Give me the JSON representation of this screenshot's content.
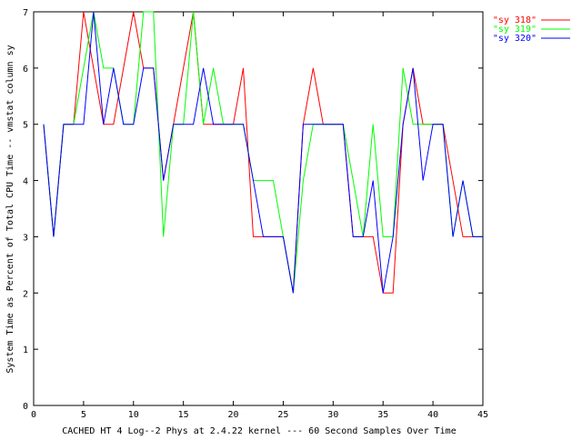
{
  "chart_data": {
    "type": "line",
    "title": "",
    "xlabel": "CACHED HT 4 Log--2 Phys at 2.4.22 kernel --- 60 Second Samples Over Time",
    "ylabel": "System Time as Percent of Total CPU Time -- vmstat column sy",
    "xlim": [
      0,
      45
    ],
    "ylim": [
      0,
      7
    ],
    "xticks": [
      0,
      5,
      10,
      15,
      20,
      25,
      30,
      35,
      40,
      45
    ],
    "yticks": [
      0,
      1,
      2,
      3,
      4,
      5,
      6,
      7
    ],
    "grid": false,
    "legend_position": "top-right",
    "x": [
      1,
      2,
      3,
      4,
      5,
      6,
      7,
      8,
      9,
      10,
      11,
      12,
      13,
      14,
      15,
      16,
      17,
      18,
      19,
      20,
      21,
      22,
      23,
      24,
      25,
      26,
      27,
      28,
      29,
      30,
      31,
      32,
      33,
      34,
      35,
      36,
      37,
      38,
      39,
      40,
      41,
      42,
      43,
      44,
      45
    ],
    "series": [
      {
        "name": "\"sy 318\"",
        "color": "#ff0000",
        "values": [
          5,
          3,
          5,
          5,
          7,
          6,
          5,
          5,
          6,
          7,
          6,
          6,
          4,
          5,
          6,
          7,
          5,
          5,
          5,
          5,
          6,
          3,
          3,
          3,
          3,
          2,
          5,
          6,
          5,
          5,
          5,
          3,
          3,
          3,
          2,
          2,
          5,
          6,
          5,
          5,
          5,
          4,
          3,
          3,
          3
        ]
      },
      {
        "name": "\"sy 319\"",
        "color": "#00ff00",
        "values": [
          5,
          3,
          5,
          5,
          6,
          7,
          6,
          6,
          5,
          5,
          7,
          7,
          3,
          5,
          5,
          7,
          5,
          6,
          5,
          5,
          5,
          4,
          4,
          4,
          3,
          2,
          4,
          5,
          5,
          5,
          5,
          4,
          3,
          5,
          3,
          3,
          6,
          5,
          5,
          5,
          5,
          3,
          4,
          3,
          3
        ]
      },
      {
        "name": "\"sy 320\"",
        "color": "#0000ff",
        "values": [
          5,
          3,
          5,
          5,
          5,
          7,
          5,
          6,
          5,
          5,
          6,
          6,
          4,
          5,
          5,
          5,
          6,
          5,
          5,
          5,
          5,
          4,
          3,
          3,
          3,
          2,
          5,
          5,
          5,
          5,
          5,
          3,
          3,
          4,
          2,
          3,
          5,
          6,
          4,
          5,
          5,
          3,
          4,
          3,
          3
        ]
      }
    ]
  }
}
